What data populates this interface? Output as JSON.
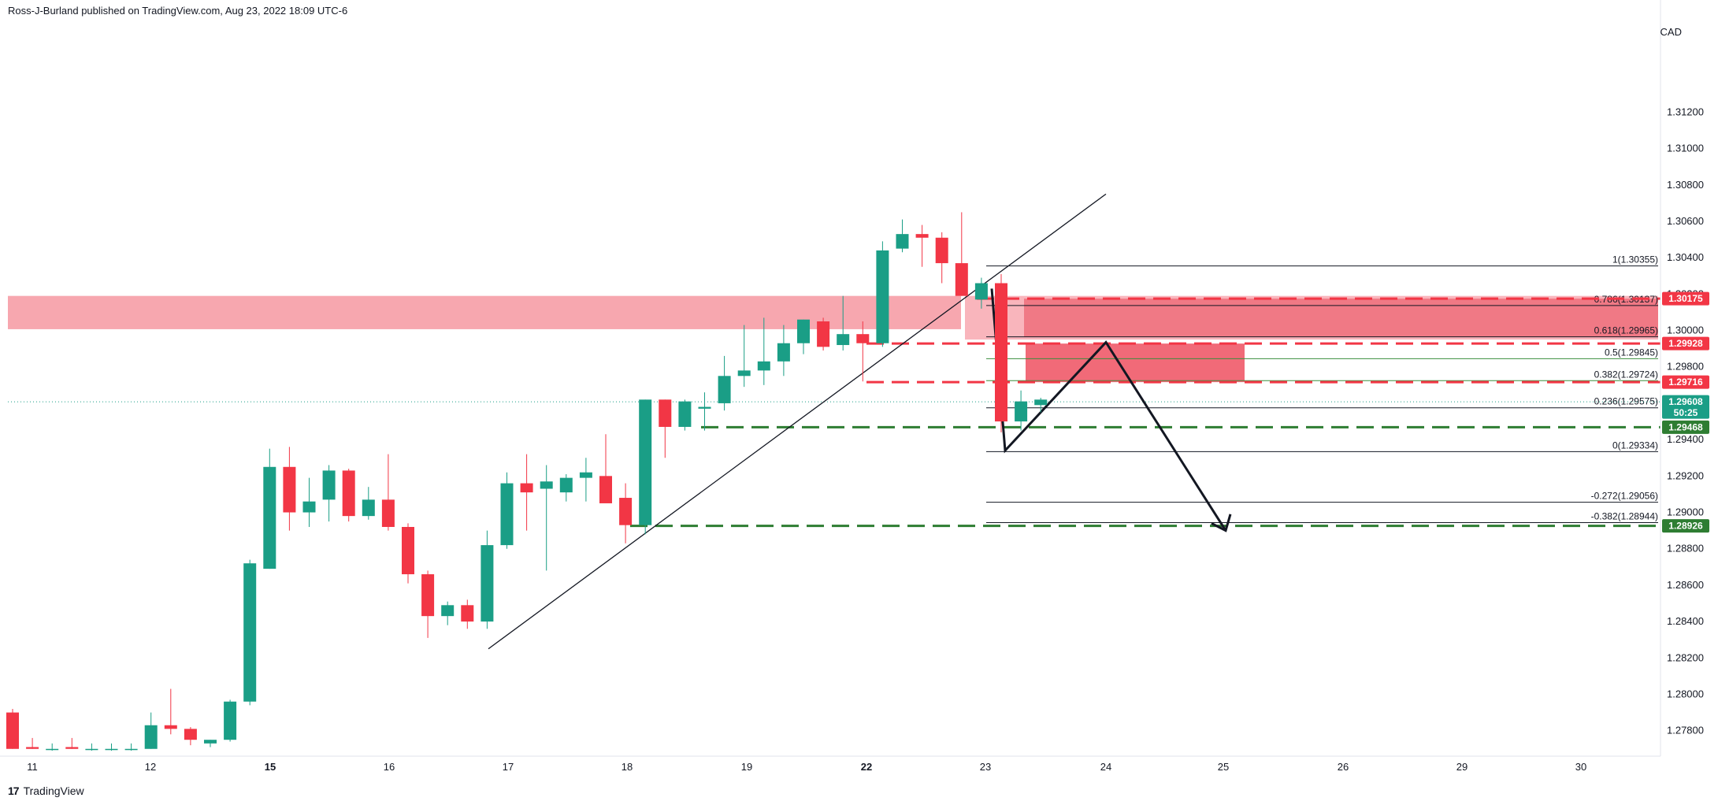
{
  "header": {
    "author": "Ross-J-Burland",
    "published_text": "published on TradingView.com,",
    "date": "Aug 23, 2022 18:09 UTC-6"
  },
  "footer": {
    "brand": "TradingView",
    "logo": "17"
  },
  "colors": {
    "up": "#1a9e86",
    "down": "#f23645",
    "zone_fill": "#f7a2ab",
    "box_fill": "#ef5a69",
    "support_line": "#2e7d32",
    "resist_line": "#f05a66",
    "fib_line": "#131722",
    "fib_green": "#388e3c",
    "last_price": "#1a9e86"
  },
  "chart_data": {
    "type": "candlestick",
    "currency": "CAD",
    "ylim": [
      1.2766,
      1.3173
    ],
    "x_tick_labels": [
      "11",
      "12",
      "15",
      "16",
      "17",
      "18",
      "19",
      "22",
      "23",
      "24",
      "25",
      "26",
      "29",
      "30"
    ],
    "y_tick_labels": [
      "1.31200",
      "1.31000",
      "1.30800",
      "1.30600",
      "1.30400",
      "1.30200",
      "1.30000",
      "1.29800",
      "1.29600",
      "1.29400",
      "1.29200",
      "1.29000",
      "1.28800",
      "1.28600",
      "1.28400",
      "1.28200",
      "1.28000",
      "1.27800"
    ],
    "candles": [
      {
        "o": 1.279,
        "h": 1.2792,
        "l": 1.277,
        "c": 1.277
      },
      {
        "o": 1.2771,
        "h": 1.2776,
        "l": 1.277,
        "c": 1.277
      },
      {
        "o": 1.277,
        "h": 1.2773,
        "l": 1.2769,
        "c": 1.277
      },
      {
        "o": 1.2771,
        "h": 1.2776,
        "l": 1.277,
        "c": 1.277
      },
      {
        "o": 1.277,
        "h": 1.2773,
        "l": 1.2769,
        "c": 1.277
      },
      {
        "o": 1.277,
        "h": 1.2773,
        "l": 1.2769,
        "c": 1.277
      },
      {
        "o": 1.277,
        "h": 1.2773,
        "l": 1.2769,
        "c": 1.277
      },
      {
        "o": 1.277,
        "h": 1.279,
        "l": 1.277,
        "c": 1.2783
      },
      {
        "o": 1.2783,
        "h": 1.2803,
        "l": 1.2778,
        "c": 1.2781
      },
      {
        "o": 1.2781,
        "h": 1.2782,
        "l": 1.2772,
        "c": 1.2775
      },
      {
        "o": 1.2773,
        "h": 1.2775,
        "l": 1.2771,
        "c": 1.2775
      },
      {
        "o": 1.2775,
        "h": 1.2797,
        "l": 1.2774,
        "c": 1.2796
      },
      {
        "o": 1.2796,
        "h": 1.2874,
        "l": 1.2794,
        "c": 1.2872
      },
      {
        "o": 1.2869,
        "h": 1.2935,
        "l": 1.2869,
        "c": 1.2925
      },
      {
        "o": 1.2925,
        "h": 1.2936,
        "l": 1.289,
        "c": 1.29
      },
      {
        "o": 1.29,
        "h": 1.2919,
        "l": 1.2892,
        "c": 1.2906
      },
      {
        "o": 1.2907,
        "h": 1.2926,
        "l": 1.2895,
        "c": 1.2923
      },
      {
        "o": 1.2923,
        "h": 1.2924,
        "l": 1.2895,
        "c": 1.2898
      },
      {
        "o": 1.2898,
        "h": 1.2914,
        "l": 1.2896,
        "c": 1.2907
      },
      {
        "o": 1.2907,
        "h": 1.2932,
        "l": 1.289,
        "c": 1.2892
      },
      {
        "o": 1.2892,
        "h": 1.2894,
        "l": 1.2861,
        "c": 1.2866
      },
      {
        "o": 1.2866,
        "h": 1.2868,
        "l": 1.2831,
        "c": 1.2843
      },
      {
        "o": 1.2843,
        "h": 1.2851,
        "l": 1.2838,
        "c": 1.2849
      },
      {
        "o": 1.2849,
        "h": 1.2852,
        "l": 1.2836,
        "c": 1.284
      },
      {
        "o": 1.284,
        "h": 1.289,
        "l": 1.2836,
        "c": 1.2882
      },
      {
        "o": 1.2882,
        "h": 1.2922,
        "l": 1.288,
        "c": 1.2916
      },
      {
        "o": 1.2916,
        "h": 1.2932,
        "l": 1.289,
        "c": 1.2911
      },
      {
        "o": 1.2913,
        "h": 1.2926,
        "l": 1.2868,
        "c": 1.2917
      },
      {
        "o": 1.2911,
        "h": 1.2921,
        "l": 1.2906,
        "c": 1.2919
      },
      {
        "o": 1.2919,
        "h": 1.293,
        "l": 1.2906,
        "c": 1.2922
      },
      {
        "o": 1.292,
        "h": 1.2943,
        "l": 1.2909,
        "c": 1.2905
      },
      {
        "o": 1.2908,
        "h": 1.2916,
        "l": 1.2883,
        "c": 1.2893
      },
      {
        "o": 1.2893,
        "h": 1.2962,
        "l": 1.2888,
        "c": 1.2962
      },
      {
        "o": 1.2962,
        "h": 1.2962,
        "l": 1.293,
        "c": 1.2947
      },
      {
        "o": 1.2947,
        "h": 1.2962,
        "l": 1.2945,
        "c": 1.2961
      },
      {
        "o": 1.2957,
        "h": 1.2966,
        "l": 1.2945,
        "c": 1.2958
      },
      {
        "o": 1.296,
        "h": 1.2986,
        "l": 1.2956,
        "c": 1.2975
      },
      {
        "o": 1.2975,
        "h": 1.3003,
        "l": 1.2969,
        "c": 1.2978
      },
      {
        "o": 1.2978,
        "h": 1.3007,
        "l": 1.297,
        "c": 1.2983
      },
      {
        "o": 1.2983,
        "h": 1.3003,
        "l": 1.2975,
        "c": 1.2993
      },
      {
        "o": 1.2993,
        "h": 1.3006,
        "l": 1.2987,
        "c": 1.3006
      },
      {
        "o": 1.3005,
        "h": 1.3007,
        "l": 1.2989,
        "c": 1.2991
      },
      {
        "o": 1.2992,
        "h": 1.3019,
        "l": 1.2989,
        "c": 1.2998
      },
      {
        "o": 1.2998,
        "h": 1.3005,
        "l": 1.2972,
        "c": 1.2993
      },
      {
        "o": 1.2993,
        "h": 1.3049,
        "l": 1.2991,
        "c": 1.3044
      },
      {
        "o": 1.3045,
        "h": 1.3061,
        "l": 1.3043,
        "c": 1.3053
      },
      {
        "o": 1.3053,
        "h": 1.3058,
        "l": 1.3035,
        "c": 1.3051
      },
      {
        "o": 1.3051,
        "h": 1.3054,
        "l": 1.3026,
        "c": 1.3037
      },
      {
        "o": 1.3037,
        "h": 1.3065,
        "l": 1.3019,
        "c": 1.3019
      },
      {
        "o": 1.3017,
        "h": 1.3029,
        "l": 1.3012,
        "c": 1.3026
      },
      {
        "o": 1.3026,
        "h": 1.3031,
        "l": 1.2944,
        "c": 1.295
      },
      {
        "o": 1.295,
        "h": 1.2967,
        "l": 1.2945,
        "c": 1.2961
      },
      {
        "o": 1.2959,
        "h": 1.2963,
        "l": 1.2955,
        "c": 1.2962
      }
    ],
    "last_candle_index": 52,
    "zones": {
      "resistance_band": [
        1.30007,
        1.3019
      ],
      "sell_box": [
        1.29716,
        1.29928
      ]
    },
    "levels": [
      {
        "value": 1.30175,
        "label": "1.30175",
        "color": "#f23645",
        "style": "dashed-red"
      },
      {
        "value": 1.29928,
        "label": "1.29928",
        "color": "#f23645",
        "style": "dashed-red"
      },
      {
        "value": 1.29716,
        "label": "1.29716",
        "color": "#f23645",
        "style": "dashed-red"
      },
      {
        "value": 1.29468,
        "label": "1.29468",
        "color": "#2e7d32",
        "style": "dashed-green"
      },
      {
        "value": 1.28926,
        "label": "1.28926",
        "color": "#2e7d32",
        "style": "dashed-green"
      }
    ],
    "last_price": {
      "value": 1.29608,
      "label": "1.29608",
      "countdown": "50:25"
    },
    "fib_levels": [
      {
        "value": 1.30355,
        "label": "1(1.30355)",
        "color": "#131722"
      },
      {
        "value": 1.30137,
        "label": "0.786(1.30137)",
        "color": "#131722"
      },
      {
        "value": 1.29965,
        "label": "0.618(1.29965)",
        "color": "#131722"
      },
      {
        "value": 1.29845,
        "label": "0.5(1.29845)",
        "color": "#388e3c"
      },
      {
        "value": 1.29724,
        "label": "0.382(1.29724)",
        "color": "#388e3c"
      },
      {
        "value": 1.29575,
        "label": "0.236(1.29575)",
        "color": "#131722"
      },
      {
        "value": 1.29334,
        "label": "0(1.29334)",
        "color": "#131722"
      },
      {
        "value": 1.29056,
        "label": "-0.272(1.29056)",
        "color": "#131722"
      },
      {
        "value": 1.28944,
        "label": "-0.382(1.28944)",
        "color": "#131722"
      }
    ]
  }
}
